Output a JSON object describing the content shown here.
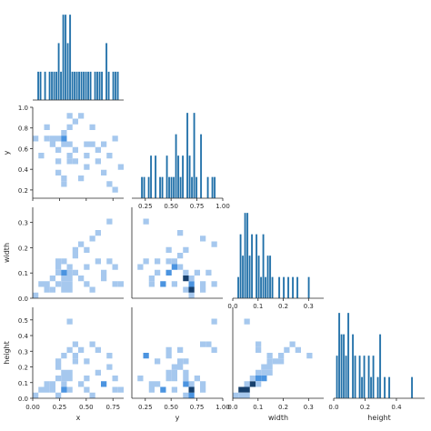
{
  "chart_data": {
    "type": "pairplot-corner",
    "variables": [
      "x",
      "y",
      "width",
      "height"
    ],
    "layout": "corner (lower triangle only)",
    "colors": {
      "hist": "#1f6fa8",
      "hist_2d_light": "#a6c8ee",
      "hist_2d_mid": "#4b94e0",
      "hist_2d_dark": "#17406d",
      "axis": "#262626"
    },
    "axes": {
      "x": {
        "range": [
          0.0,
          0.85
        ],
        "ticks": [
          0.0,
          0.25,
          0.5,
          0.75
        ],
        "tick_labels": [
          "0.00",
          "0.25",
          "0.50",
          "0.75"
        ]
      },
      "y": {
        "range": [
          0.12,
          1.0
        ],
        "ticks": [
          0.25,
          0.5,
          0.75,
          1.0
        ],
        "tick_labels": [
          "0.25",
          "0.50",
          "0.75",
          "1.00"
        ],
        "row_ticks": [
          0.2,
          0.4,
          0.6,
          0.8,
          1.0
        ],
        "row_tick_labels": [
          "0.2",
          "0.4",
          "0.6",
          "0.8",
          "1.0"
        ]
      },
      "width": {
        "range": [
          0.0,
          0.36
        ],
        "ticks": [
          0.0,
          0.1,
          0.2,
          0.3
        ],
        "tick_labels": [
          "0.0",
          "0.1",
          "0.2",
          "0.3"
        ]
      },
      "height": {
        "range": [
          0.0,
          0.58
        ],
        "ticks": [
          0.0,
          0.2,
          0.4
        ],
        "tick_labels": [
          "0.0",
          "0.2",
          "0.4"
        ],
        "row_ticks": [
          0.0,
          0.1,
          0.2,
          0.3,
          0.4,
          0.5
        ],
        "row_tick_labels": [
          "0.0",
          "0.1",
          "0.2",
          "0.3",
          "0.4",
          "0.5"
        ]
      }
    },
    "points": [
      {
        "x": 0.05,
        "y": 0.72,
        "width": 0.02,
        "height": 0.02
      },
      {
        "x": 0.08,
        "y": 0.55,
        "width": 0.05,
        "height": 0.04
      },
      {
        "x": 0.12,
        "y": 0.68,
        "width": 0.03,
        "height": 0.05
      },
      {
        "x": 0.15,
        "y": 0.78,
        "width": 0.06,
        "height": 0.08
      },
      {
        "x": 0.18,
        "y": 0.65,
        "width": 0.08,
        "height": 0.1
      },
      {
        "x": 0.2,
        "y": 0.72,
        "width": 0.04,
        "height": 0.06
      },
      {
        "x": 0.22,
        "y": 0.45,
        "width": 0.1,
        "height": 0.12
      },
      {
        "x": 0.24,
        "y": 0.6,
        "width": 0.12,
        "height": 0.2
      },
      {
        "x": 0.25,
        "y": 0.7,
        "width": 0.05,
        "height": 0.03
      },
      {
        "x": 0.26,
        "y": 0.35,
        "width": 0.14,
        "height": 0.22
      },
      {
        "x": 0.28,
        "y": 0.3,
        "width": 0.06,
        "height": 0.07
      },
      {
        "x": 0.28,
        "y": 0.75,
        "width": 0.09,
        "height": 0.14
      },
      {
        "x": 0.29,
        "y": 0.68,
        "width": 0.03,
        "height": 0.05
      },
      {
        "x": 0.3,
        "y": 0.25,
        "width": 0.15,
        "height": 0.28
      },
      {
        "x": 0.3,
        "y": 0.72,
        "width": 0.07,
        "height": 0.1
      },
      {
        "x": 0.31,
        "y": 0.62,
        "width": 0.11,
        "height": 0.16
      },
      {
        "x": 0.32,
        "y": 0.8,
        "width": 0.04,
        "height": 0.04
      },
      {
        "x": 0.33,
        "y": 0.55,
        "width": 0.13,
        "height": 0.18
      },
      {
        "x": 0.34,
        "y": 0.66,
        "width": 0.08,
        "height": 0.12
      },
      {
        "x": 0.35,
        "y": 0.9,
        "width": 0.05,
        "height": 0.5
      },
      {
        "x": 0.36,
        "y": 0.45,
        "width": 0.1,
        "height": 0.3
      },
      {
        "x": 0.38,
        "y": 0.58,
        "width": 0.16,
        "height": 0.24
      },
      {
        "x": 0.4,
        "y": 0.85,
        "width": 0.09,
        "height": 0.36
      },
      {
        "x": 0.42,
        "y": 0.5,
        "width": 0.18,
        "height": 0.26
      },
      {
        "x": 0.44,
        "y": 0.92,
        "width": 0.22,
        "height": 0.3
      },
      {
        "x": 0.45,
        "y": 0.3,
        "width": 0.07,
        "height": 0.09
      },
      {
        "x": 0.48,
        "y": 0.55,
        "width": 0.12,
        "height": 0.14
      },
      {
        "x": 0.5,
        "y": 0.62,
        "width": 0.2,
        "height": 0.22
      },
      {
        "x": 0.52,
        "y": 0.4,
        "width": 0.06,
        "height": 0.05
      },
      {
        "x": 0.55,
        "y": 0.78,
        "width": 0.24,
        "height": 0.33
      },
      {
        "x": 0.58,
        "y": 0.66,
        "width": 0.03,
        "height": 0.02
      },
      {
        "x": 0.6,
        "y": 0.48,
        "width": 0.15,
        "height": 0.17
      },
      {
        "x": 0.62,
        "y": 0.58,
        "width": 0.26,
        "height": 0.3
      },
      {
        "x": 0.65,
        "y": 0.35,
        "width": 0.09,
        "height": 0.1
      },
      {
        "x": 0.68,
        "y": 0.66,
        "width": 0.08,
        "height": 0.08
      },
      {
        "x": 0.7,
        "y": 0.52,
        "width": 0.14,
        "height": 0.2
      },
      {
        "x": 0.72,
        "y": 0.28,
        "width": 0.3,
        "height": 0.26
      },
      {
        "x": 0.75,
        "y": 0.72,
        "width": 0.05,
        "height": 0.06
      },
      {
        "x": 0.78,
        "y": 0.22,
        "width": 0.12,
        "height": 0.12
      },
      {
        "x": 0.8,
        "y": 0.42,
        "width": 0.06,
        "height": 0.04
      }
    ]
  }
}
